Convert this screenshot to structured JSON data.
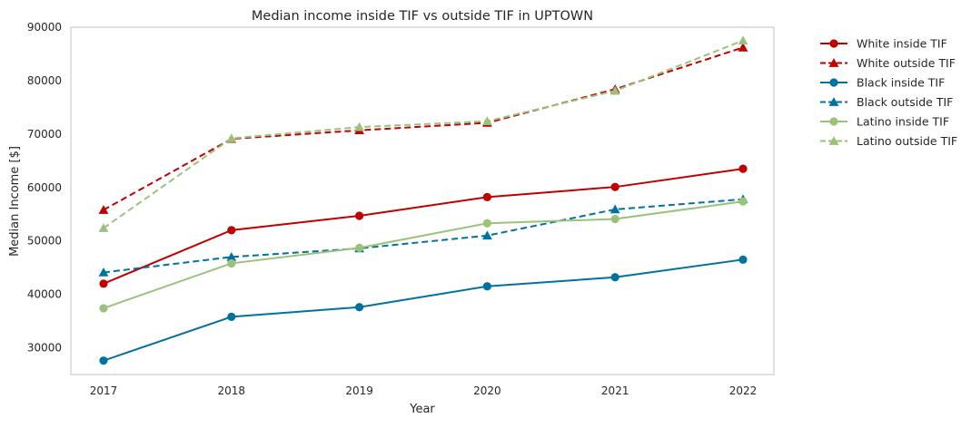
{
  "chart_data": {
    "type": "line",
    "title": "Median income inside TIF vs outside TIF in UPTOWN",
    "xlabel": "Year",
    "ylabel": "Median Income [$]",
    "x": [
      2017,
      2018,
      2019,
      2020,
      2021,
      2022
    ],
    "x_tick_labels": [
      "2017",
      "2018",
      "2019",
      "2020",
      "2021",
      "2022"
    ],
    "ylim": [
      25000,
      90000
    ],
    "y_ticks": [
      30000,
      40000,
      50000,
      60000,
      70000,
      80000,
      90000
    ],
    "y_tick_labels": [
      "30000",
      "40000",
      "50000",
      "60000",
      "70000",
      "80000",
      "90000"
    ],
    "grid": false,
    "legend_position": "outside-right-top",
    "series": [
      {
        "name": "White inside TIF",
        "color": "#c00000",
        "dash": "solid",
        "marker": "circle",
        "values": [
          42000,
          52000,
          54700,
          58200,
          60100,
          63500
        ]
      },
      {
        "name": "White outside TIF",
        "color": "#c00000",
        "dash": "dashed",
        "marker": "triangle",
        "values": [
          55800,
          69100,
          70700,
          72100,
          78400,
          86200
        ]
      },
      {
        "name": "Black inside TIF",
        "color": "#0072a0",
        "dash": "solid",
        "marker": "circle",
        "values": [
          27600,
          35800,
          37600,
          41500,
          43200,
          46500
        ]
      },
      {
        "name": "Black outside TIF",
        "color": "#0072a0",
        "dash": "dashed",
        "marker": "triangle",
        "values": [
          44100,
          47000,
          48600,
          51000,
          55900,
          57800
        ]
      },
      {
        "name": "Latino inside TIF",
        "color": "#9bc27a",
        "dash": "solid",
        "marker": "circle",
        "values": [
          37400,
          45800,
          48700,
          53300,
          54100,
          57400
        ]
      },
      {
        "name": "Latino outside TIF",
        "color": "#9bc27a",
        "dash": "dashed",
        "marker": "triangle",
        "values": [
          52400,
          69200,
          71300,
          72400,
          78100,
          87500
        ]
      }
    ]
  }
}
